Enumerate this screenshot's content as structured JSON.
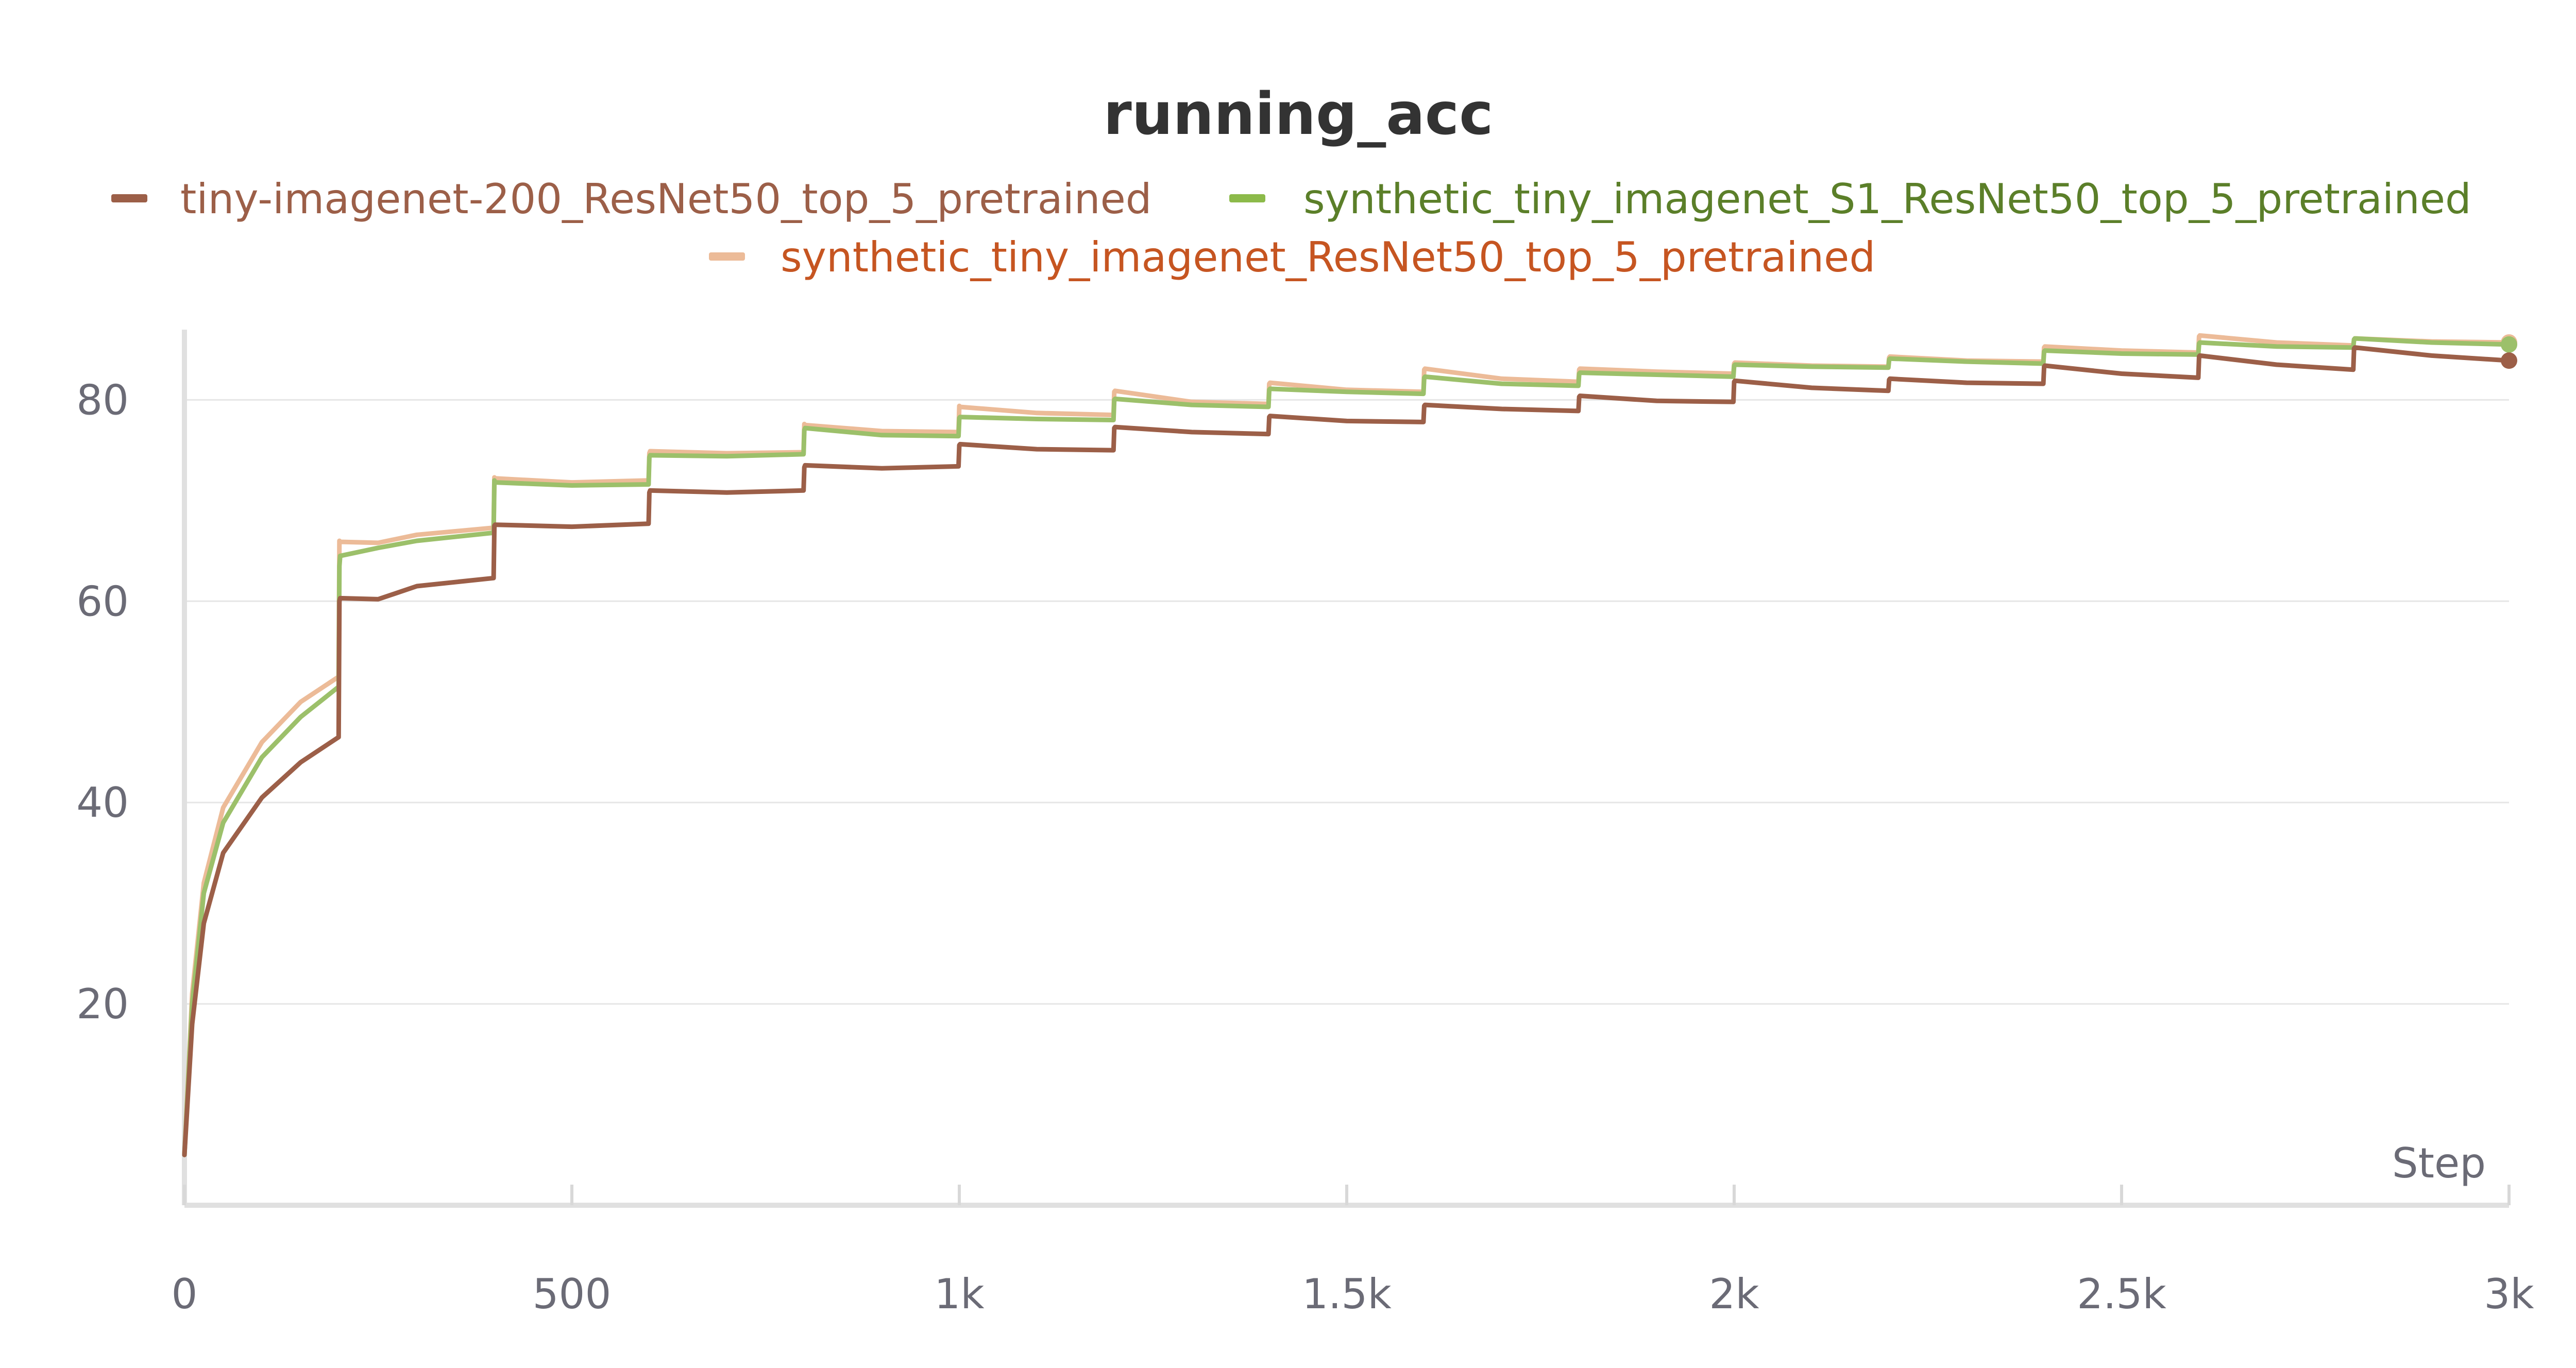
{
  "chart_data": {
    "type": "line",
    "title": "running_acc",
    "xlabel": "Step",
    "ylabel": "",
    "xlim": [
      0,
      3000
    ],
    "ylim": [
      0,
      88
    ],
    "x_ticks": [
      0,
      500,
      1000,
      1500,
      2000,
      2500,
      3000
    ],
    "x_tick_labels": [
      "0",
      "500",
      "1k",
      "1.5k",
      "2k",
      "2.5k",
      "3k"
    ],
    "y_ticks": [
      20,
      40,
      60,
      80
    ],
    "y_tick_labels": [
      "20",
      "40",
      "60",
      "80"
    ],
    "grid": true,
    "legend_position": "top",
    "x": [
      0,
      10,
      25,
      50,
      100,
      150,
      199,
      200,
      201,
      250,
      300,
      399,
      400,
      401,
      500,
      599,
      600,
      601,
      700,
      799,
      800,
      801,
      900,
      999,
      1000,
      1001,
      1100,
      1199,
      1200,
      1201,
      1300,
      1399,
      1400,
      1401,
      1500,
      1599,
      1600,
      1601,
      1700,
      1799,
      1800,
      1801,
      1900,
      1999,
      2000,
      2001,
      2100,
      2199,
      2200,
      2201,
      2300,
      2399,
      2400,
      2401,
      2500,
      2599,
      2600,
      2601,
      2700,
      2799,
      2800,
      2801,
      2900,
      3000
    ],
    "series": [
      {
        "name": "tiny-imagenet-200_ResNet50_top_5_pretrained",
        "color": "#9c5f48",
        "legend_color": "#9c5f48",
        "values": [
          5,
          18,
          28,
          35,
          40.5,
          44,
          46.5,
          60,
          60.3,
          60.2,
          61.5,
          62.3,
          67.5,
          67.6,
          67.4,
          67.7,
          70.8,
          71,
          70.8,
          71,
          73.3,
          73.5,
          73.2,
          73.4,
          75.5,
          75.6,
          75.1,
          75,
          77.2,
          77.3,
          76.8,
          76.6,
          78.3,
          78.4,
          77.9,
          77.8,
          79.4,
          79.5,
          79.1,
          78.9,
          80.3,
          80.4,
          79.9,
          79.8,
          81.8,
          81.9,
          81.2,
          80.9,
          82,
          82.1,
          81.7,
          81.6,
          83.3,
          83.4,
          82.6,
          82.2,
          84.3,
          84.4,
          83.5,
          83,
          85.1,
          85.2,
          84.4,
          83.9
        ]
      },
      {
        "name": "synthetic_tiny_imagenet_S1_ResNet50_top_5_pretrained",
        "color": "#9cc06a",
        "legend_color": "#8cba4a",
        "values": [
          5,
          20,
          31,
          38,
          44.5,
          48.5,
          51.5,
          63.5,
          64.5,
          65.3,
          66,
          66.8,
          72,
          71.8,
          71.5,
          71.6,
          74.3,
          74.5,
          74.4,
          74.6,
          77,
          77.2,
          76.5,
          76.4,
          78.2,
          78.3,
          78.1,
          78,
          80,
          80.1,
          79.5,
          79.3,
          81,
          81.1,
          80.8,
          80.6,
          82.2,
          82.3,
          81.6,
          81.4,
          82.6,
          82.7,
          82.5,
          82.3,
          83.4,
          83.5,
          83.3,
          83.2,
          84,
          84.1,
          83.8,
          83.6,
          84.8,
          84.9,
          84.6,
          84.5,
          85.6,
          85.7,
          85.3,
          85.2,
          86,
          86.1,
          85.7,
          85.5
        ]
      },
      {
        "name": "synthetic_tiny_imagenet_ResNet50_top_5_pretrained",
        "color": "#ecbb98",
        "legend_color": "#ecbb98",
        "values": [
          5,
          21,
          32,
          39.5,
          46,
          50,
          52.5,
          66,
          65.9,
          65.8,
          66.6,
          67.3,
          72.3,
          72.2,
          71.8,
          72,
          74.7,
          74.9,
          74.7,
          74.8,
          77.6,
          77.5,
          76.9,
          76.8,
          79.4,
          79.3,
          78.7,
          78.5,
          80.8,
          80.9,
          79.8,
          79.6,
          81.6,
          81.7,
          81,
          80.8,
          83,
          83.1,
          82.1,
          81.8,
          83,
          83.1,
          82.8,
          82.6,
          83.6,
          83.7,
          83.4,
          83.3,
          84.2,
          84.3,
          83.9,
          83.8,
          85.2,
          85.3,
          84.9,
          84.7,
          86.3,
          86.4,
          85.7,
          85.4,
          86,
          86.1,
          85.8,
          85.7
        ]
      }
    ]
  },
  "legend_text_colors": [
    "#9c5f48",
    "#5b7f29",
    "#c65521"
  ]
}
